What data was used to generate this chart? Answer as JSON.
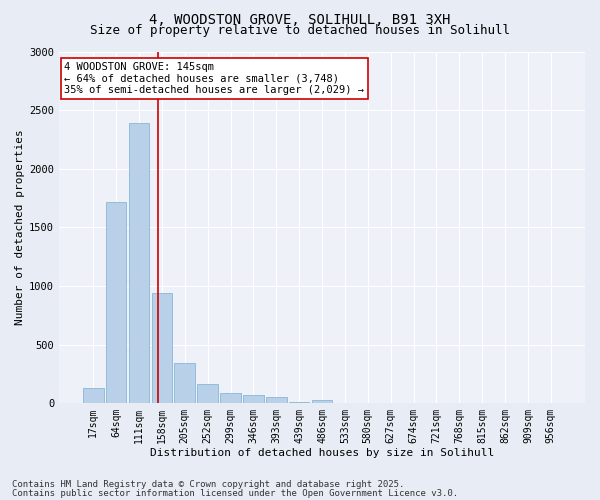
{
  "title_line1": "4, WOODSTON GROVE, SOLIHULL, B91 3XH",
  "title_line2": "Size of property relative to detached houses in Solihull",
  "xlabel": "Distribution of detached houses by size in Solihull",
  "ylabel": "Number of detached properties",
  "categories": [
    "17sqm",
    "64sqm",
    "111sqm",
    "158sqm",
    "205sqm",
    "252sqm",
    "299sqm",
    "346sqm",
    "393sqm",
    "439sqm",
    "486sqm",
    "533sqm",
    "580sqm",
    "627sqm",
    "674sqm",
    "721sqm",
    "768sqm",
    "815sqm",
    "862sqm",
    "909sqm",
    "956sqm"
  ],
  "values": [
    130,
    1720,
    2390,
    940,
    340,
    160,
    90,
    70,
    50,
    10,
    30,
    5,
    3,
    2,
    2,
    2,
    2,
    2,
    2,
    2,
    2
  ],
  "bar_color": "#b8d0e8",
  "bar_edge_color": "#7aafd4",
  "vline_color": "#cc0000",
  "annotation_text": "4 WOODSTON GROVE: 145sqm\n← 64% of detached houses are smaller (3,748)\n35% of semi-detached houses are larger (2,029) →",
  "annotation_box_facecolor": "#ffffff",
  "annotation_box_edgecolor": "#cc0000",
  "ylim_max": 3000,
  "yticks": [
    0,
    500,
    1000,
    1500,
    2000,
    2500,
    3000
  ],
  "footer_line1": "Contains HM Land Registry data © Crown copyright and database right 2025.",
  "footer_line2": "Contains public sector information licensed under the Open Government Licence v3.0.",
  "bg_color": "#e8edf5",
  "plot_bg_color": "#eef2f8",
  "title_fontsize": 10,
  "subtitle_fontsize": 9,
  "axis_label_fontsize": 8,
  "tick_fontsize": 7,
  "footer_fontsize": 6.5,
  "annotation_fontsize": 7.5
}
